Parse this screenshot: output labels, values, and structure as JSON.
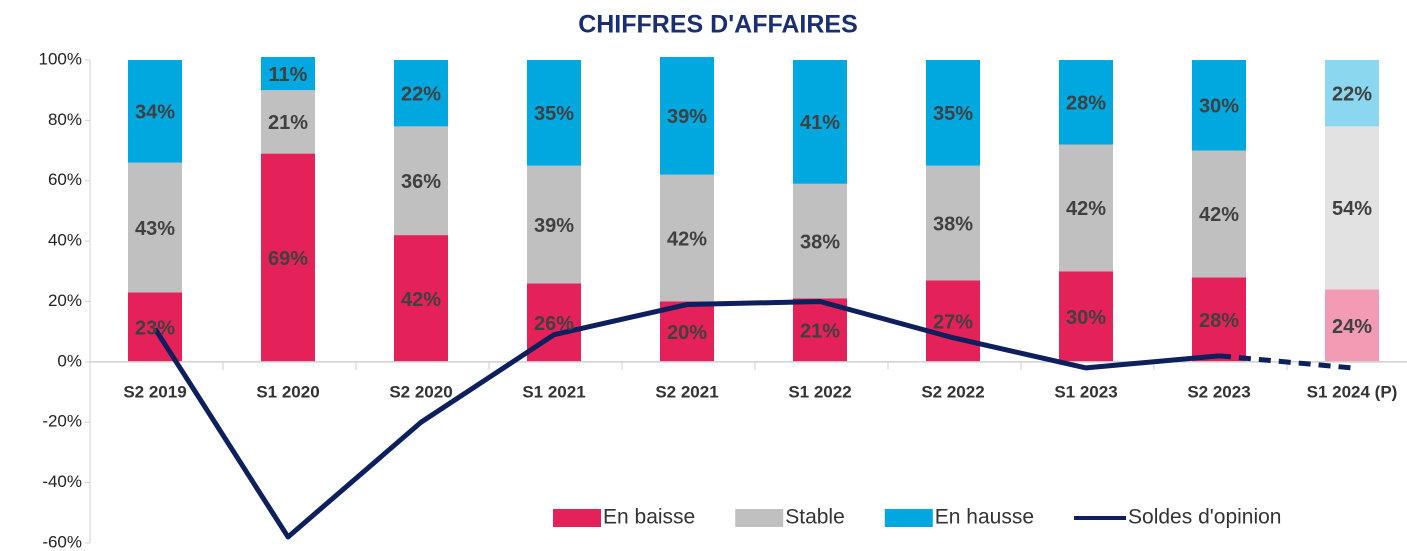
{
  "chart_data": {
    "type": "bar",
    "stacked": true,
    "title": "CHIFFRES D'AFFAIRES",
    "categories": [
      "S2 2019",
      "S1 2020",
      "S2 2020",
      "S1 2021",
      "S2 2021",
      "S1 2022",
      "S2 2022",
      "S1 2023",
      "S2 2023",
      "S1 2024 (P)"
    ],
    "series": [
      {
        "name": "En baisse",
        "color": "#e5215a",
        "values": [
          23,
          69,
          42,
          26,
          20,
          21,
          27,
          30,
          28,
          24
        ],
        "value_labels": [
          "23%",
          "69%",
          "42%",
          "26%",
          "20%",
          "21%",
          "27%",
          "30%",
          "28%",
          "24%"
        ]
      },
      {
        "name": "Stable",
        "color": "#c0c0c0",
        "values": [
          43,
          21,
          36,
          39,
          42,
          38,
          38,
          42,
          42,
          54
        ],
        "value_labels": [
          "43%",
          "21%",
          "36%",
          "39%",
          "42%",
          "38%",
          "38%",
          "42%",
          "42%",
          "54%"
        ]
      },
      {
        "name": "En hausse",
        "color": "#00a8e0",
        "values": [
          34,
          11,
          22,
          35,
          39,
          41,
          35,
          28,
          30,
          22
        ],
        "value_labels": [
          "34%",
          "11%",
          "22%",
          "35%",
          "39%",
          "41%",
          "35%",
          "28%",
          "30%",
          "22%"
        ]
      },
      {
        "name": "Soldes d'opinion",
        "type": "line",
        "color": "#0d1f5c",
        "values": [
          11,
          -58,
          -20,
          9,
          19,
          20,
          8,
          -2,
          2,
          -2
        ]
      }
    ],
    "ylim": [
      -60,
      100
    ],
    "yticks": [
      {
        "value": -60,
        "label": "-60%"
      },
      {
        "value": -40,
        "label": "-40%"
      },
      {
        "value": -20,
        "label": "-20%"
      },
      {
        "value": 0,
        "label": "0%"
      },
      {
        "value": 20,
        "label": "20%"
      },
      {
        "value": 40,
        "label": "40%"
      },
      {
        "value": 60,
        "label": "60%"
      },
      {
        "value": 80,
        "label": "80%"
      },
      {
        "value": 100,
        "label": "100%"
      }
    ],
    "grid": false,
    "legend": "bottom-right"
  }
}
